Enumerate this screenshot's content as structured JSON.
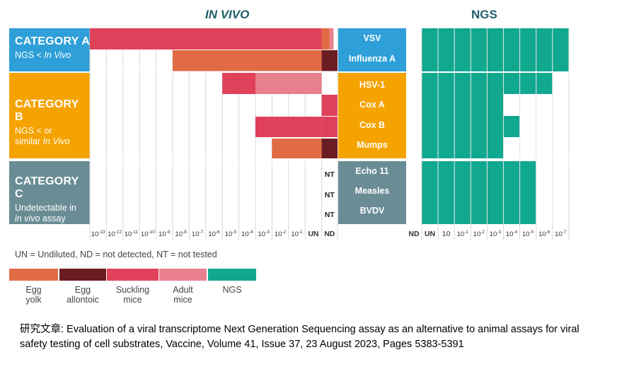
{
  "titles": {
    "in_vivo": "IN VIVO",
    "ngs": "NGS"
  },
  "categories": [
    {
      "title": "CATEGORY A",
      "desc_lines": [
        "NGS < In Vivo"
      ],
      "color": "#2e9fd8"
    },
    {
      "title": "CATEGORY B",
      "desc_lines": [
        "NGS < or",
        "similar In Vivo"
      ],
      "color": "#f5a300"
    },
    {
      "title": "CATEGORY C",
      "desc_lines": [
        "Undetectable in",
        "in vivo assay"
      ],
      "color": "#6a8c95"
    }
  ],
  "viruses": [
    "VSV",
    "Influenza A",
    "HSV-1",
    "Cox A",
    "Cox B",
    "Mumps",
    "Echo 11",
    "Measles",
    "BVDV"
  ],
  "nt_label": "NT",
  "in_vivo_ticks": [
    "10-13",
    "10-12",
    "10-11",
    "10-10",
    "10-9",
    "10-8",
    "10-7",
    "10-6",
    "10-5",
    "10-4",
    "10-3",
    "10-2",
    "10-1",
    "UN",
    "ND"
  ],
  "ngs_ticks": [
    "ND",
    "UN",
    "10",
    "10-1",
    "10-2",
    "10-3",
    "10-4",
    "10-5",
    "10-6",
    "10-7"
  ],
  "colors": {
    "egg_yolk": "#e06b44",
    "egg_allantoic": "#6b1c22",
    "suckling_mice": "#e0415a",
    "adult_mice": "#e9808e",
    "ngs": "#10a88f"
  },
  "legend": {
    "note": "UN = Undiluted, ND = not detected, NT = not tested",
    "items": [
      {
        "label": "Egg\nyolk",
        "color": "#e06b44"
      },
      {
        "label": "Egg\nallontoic",
        "color": "#6b1c22"
      },
      {
        "label": "Suckling\nmice",
        "color": "#e0415a"
      },
      {
        "label": "Adult\nmice",
        "color": "#e9808e"
      },
      {
        "label": "NGS",
        "color": "#10a88f"
      }
    ]
  },
  "caption": "研究文章: Evaluation of a viral transcriptome Next Generation Sequencing assay as an alternative to animal assays for viral safety testing of cell substrates, Vaccine, Volume 41, Issue 37, 23 August 2023, Pages 5383-5391"
}
